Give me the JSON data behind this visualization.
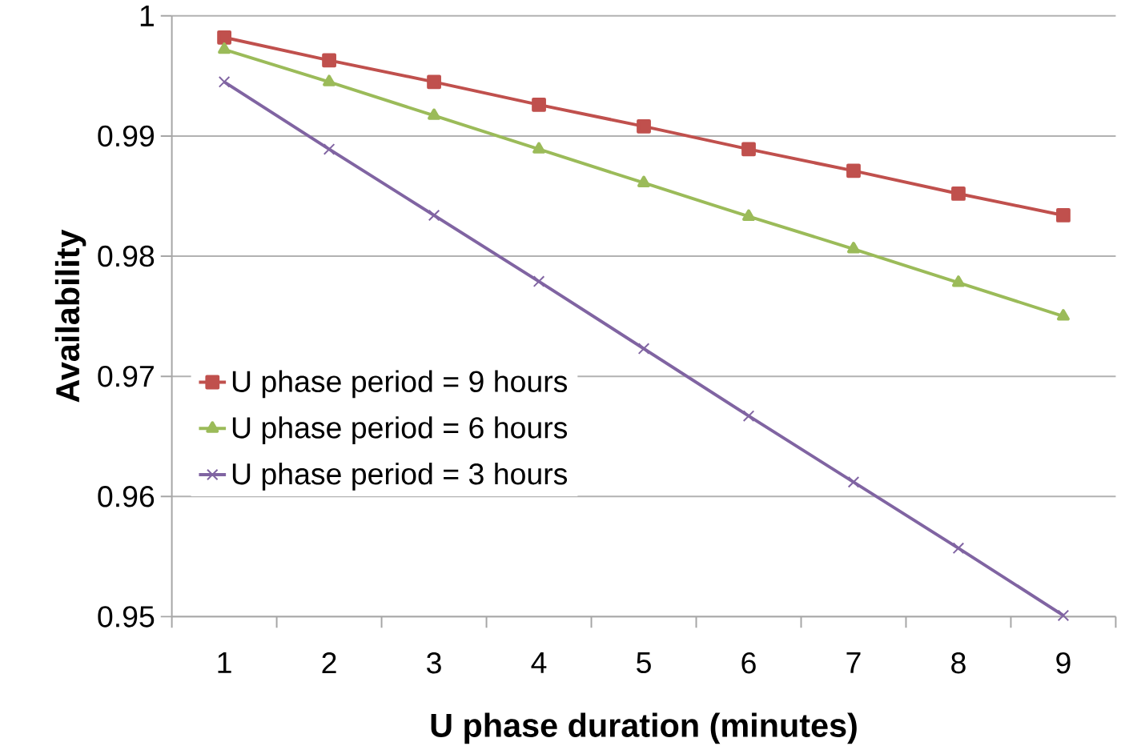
{
  "chart_data": {
    "type": "line",
    "xlabel": "U phase duration (minutes)",
    "ylabel": "Availability",
    "categories": [
      "1",
      "2",
      "3",
      "4",
      "5",
      "6",
      "7",
      "8",
      "9"
    ],
    "series": [
      {
        "name": "U phase period = 9 hours",
        "color": "#c0504d",
        "marker": "square",
        "values": [
          0.9982,
          0.9963,
          0.9945,
          0.9926,
          0.9908,
          0.9889,
          0.9871,
          0.9852,
          0.9834
        ]
      },
      {
        "name": "U phase period = 6 hours",
        "color": "#9bbb59",
        "marker": "triangle",
        "values": [
          0.9972,
          0.9945,
          0.9917,
          0.9889,
          0.9861,
          0.9833,
          0.9806,
          0.9778,
          0.975
        ]
      },
      {
        "name": "U phase period = 3 hours",
        "color": "#8064a2",
        "marker": "cross",
        "values": [
          0.9945,
          0.9889,
          0.9834,
          0.9779,
          0.9723,
          0.9667,
          0.9612,
          0.9557,
          0.9501
        ]
      }
    ],
    "ylim": [
      0.95,
      1
    ],
    "yticks": [
      0.95,
      0.96,
      0.97,
      0.98,
      0.99,
      1
    ],
    "grid": "y",
    "legend": "left",
    "line_style": "solid"
  }
}
